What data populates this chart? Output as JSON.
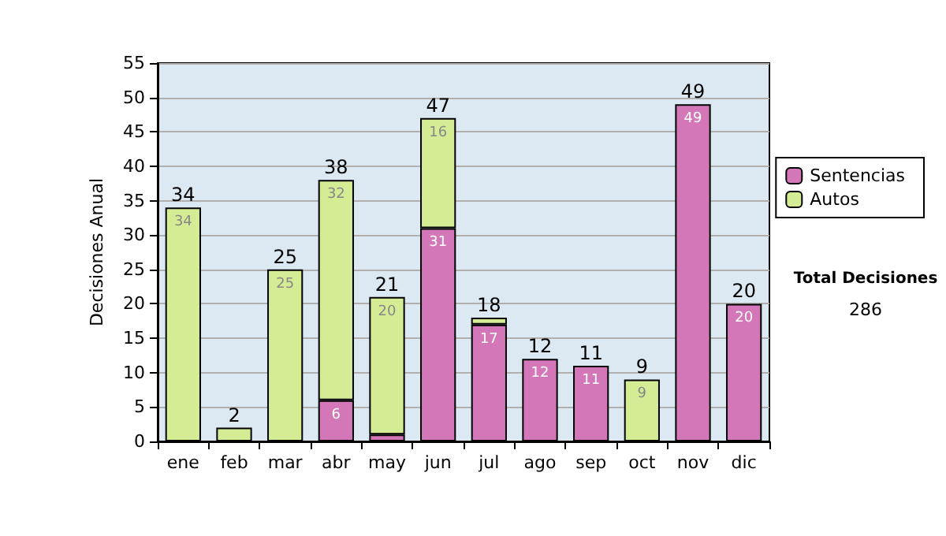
{
  "chart_data": {
    "type": "bar",
    "stacked": true,
    "ylabel": "Decisiones Anual",
    "categories": [
      "ene",
      "feb",
      "mar",
      "abr",
      "may",
      "jun",
      "jul",
      "ago",
      "sep",
      "oct",
      "nov",
      "dic"
    ],
    "series": [
      {
        "name": "Sentencias",
        "color": "#d477b9",
        "values": [
          0,
          0,
          0,
          6,
          1,
          31,
          17,
          12,
          11,
          0,
          49,
          20
        ],
        "value_labels": [
          null,
          null,
          null,
          "6",
          null,
          "31",
          "17",
          "12",
          "11",
          null,
          "49",
          "20"
        ]
      },
      {
        "name": "Autos",
        "color": "#d4ec94",
        "values": [
          34,
          2,
          25,
          32,
          20,
          16,
          1,
          0,
          0,
          9,
          0,
          0
        ],
        "value_labels": [
          "34",
          null,
          "25",
          "32",
          "20",
          "16",
          null,
          null,
          null,
          "9",
          null,
          null
        ]
      }
    ],
    "totals": [
      "34",
      "2",
      "25",
      "38",
      "21",
      "47",
      "18",
      "12",
      "11",
      "9",
      "49",
      "20"
    ],
    "ylim": [
      0,
      55
    ],
    "yticks": [
      0,
      5,
      10,
      15,
      20,
      25,
      30,
      35,
      40,
      45,
      50,
      55
    ],
    "grid": "y",
    "legend": "right",
    "annotations": [
      "Total Decisiones",
      "286"
    ]
  }
}
